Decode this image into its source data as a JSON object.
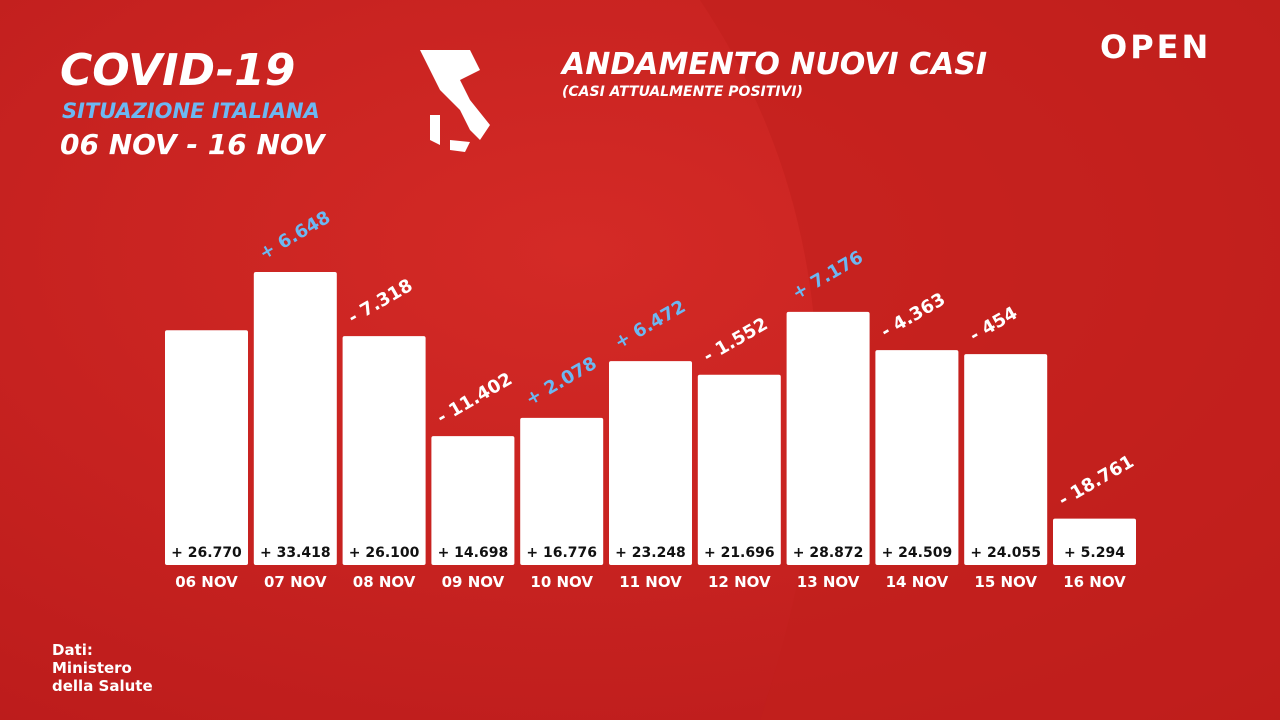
{
  "chart_data": {
    "type": "bar",
    "heading": "COVID-19",
    "heading_subtitle": "SITUAZIONE ITALIANA",
    "period": "06 NOV - 16 NOV",
    "title": "ANDAMENTO NUOVI CASI",
    "subtitle": "(CASI ATTUALMENTE POSITIVI)",
    "brand": "OPEN",
    "source": [
      "Dati:",
      "Ministero",
      "della Salute"
    ],
    "categories": [
      "06 NOV",
      "07 NOV",
      "08 NOV",
      "09 NOV",
      "10 NOV",
      "11 NOV",
      "12 NOV",
      "13 NOV",
      "14 NOV",
      "15 NOV",
      "16 NOV"
    ],
    "values": [
      26770,
      33418,
      26100,
      14698,
      16776,
      23248,
      21696,
      28872,
      24509,
      24055,
      5294
    ],
    "value_labels": [
      "+ 26.770",
      "+ 33.418",
      "+ 26.100",
      "+ 14.698",
      "+ 16.776",
      "+ 23.248",
      "+ 21.696",
      "+ 28.872",
      "+ 24.509",
      "+ 24.055",
      "+ 5.294"
    ],
    "color": "#ffffff",
    "changes": {
      "values": [
        null,
        6648,
        -7318,
        -11402,
        2078,
        6472,
        -1552,
        7176,
        -4363,
        -454,
        -18761
      ],
      "value_labels": [
        null,
        "+ 6.648",
        "- 7.318",
        "- 11.402",
        "+ 2.078",
        "+ 6.472",
        "- 1.552",
        "+ 7.176",
        "- 4.363",
        "- 454",
        "- 18.761"
      ],
      "positive_color": "#6cb8f2",
      "negative_color": "#ffffff"
    }
  }
}
